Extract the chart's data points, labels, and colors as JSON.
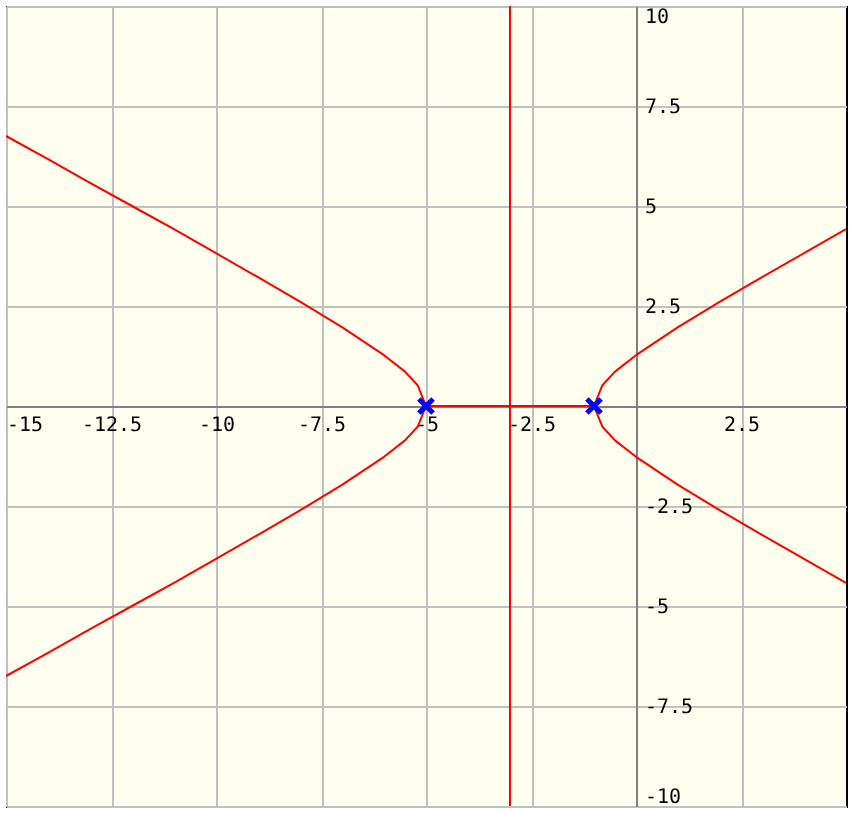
{
  "chart_data": {
    "type": "line",
    "xlim": [
      -15,
      5
    ],
    "ylim": [
      -10,
      10
    ],
    "xticks": [
      -15,
      -12.5,
      -10,
      -7.5,
      -5,
      -2.5,
      2.5
    ],
    "yticks": [
      -10,
      -7.5,
      -5,
      -2.5,
      2.5,
      5,
      7.5,
      10
    ],
    "grid": true,
    "series": [
      {
        "color": "#ff0000",
        "x": [
          -5,
          -5.2,
          -5.5,
          -6,
          -7,
          -8,
          -9,
          -10,
          -11,
          -12,
          -13,
          -14,
          -15
        ],
        "values": [
          0,
          0.52,
          0.86,
          1.27,
          1.97,
          2.61,
          3.22,
          3.82,
          4.42,
          5.0,
          5.58,
          6.17,
          6.75
        ]
      },
      {
        "color": "#ff0000",
        "x": [
          -5,
          -5.2,
          -5.5,
          -6,
          -7,
          -8,
          -9,
          -10,
          -11,
          -12,
          -13,
          -14,
          -15
        ],
        "values": [
          0,
          -0.52,
          -0.86,
          -1.27,
          -1.97,
          -2.61,
          -3.22,
          -3.82,
          -4.42,
          -5.0,
          -5.58,
          -6.17,
          -6.75
        ]
      },
      {
        "color": "#ff0000",
        "x": [
          -1,
          -0.8,
          -0.5,
          0,
          1,
          2,
          3,
          4,
          5
        ],
        "values": [
          0,
          0.52,
          0.86,
          1.27,
          1.97,
          2.61,
          3.22,
          3.82,
          4.42
        ]
      },
      {
        "color": "#ff0000",
        "x": [
          -1,
          -0.8,
          -0.5,
          0,
          1,
          2,
          3,
          4,
          5
        ],
        "values": [
          0,
          -0.52,
          -0.86,
          -1.27,
          -1.97,
          -2.61,
          -3.22,
          -3.82,
          -4.42
        ]
      },
      {
        "color": "#ff0000",
        "x": [
          -5,
          -1
        ],
        "values": [
          0,
          0
        ]
      },
      {
        "color": "#ff0000",
        "x": [
          -3,
          -3
        ],
        "values": [
          -10,
          10
        ]
      },
      {
        "type": "scatter",
        "marker": "cross",
        "color": "#0000ff",
        "x": [
          -5,
          -1
        ],
        "values": [
          0,
          0
        ]
      }
    ]
  }
}
